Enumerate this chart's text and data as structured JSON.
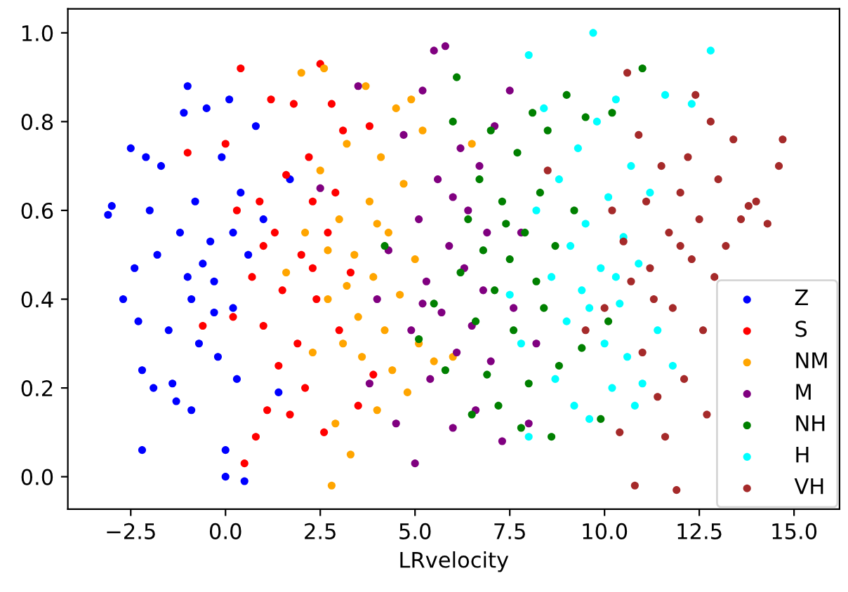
{
  "chart_data": {
    "type": "scatter",
    "xlabel": "LRvelocity",
    "xlim": [
      -4.16,
      16.2
    ],
    "ylim": [
      -0.073,
      1.054
    ],
    "xticks": [
      {
        "value": -2.5,
        "label": "−2.5"
      },
      {
        "value": 0,
        "label": "0.0"
      },
      {
        "value": 2.5,
        "label": "2.5"
      },
      {
        "value": 5,
        "label": "5.0"
      },
      {
        "value": 7.5,
        "label": "7.5"
      },
      {
        "value": 10,
        "label": "10.0"
      },
      {
        "value": 12.5,
        "label": "12.5"
      },
      {
        "value": 15,
        "label": "15.0"
      }
    ],
    "yticks": [
      {
        "value": 0,
        "label": "0.0"
      },
      {
        "value": 0.2,
        "label": "0.2"
      },
      {
        "value": 0.4,
        "label": "0.4"
      },
      {
        "value": 0.6,
        "label": "0.6"
      },
      {
        "value": 0.8,
        "label": "0.8"
      },
      {
        "value": 1,
        "label": "1.0"
      }
    ],
    "legend": "bottom right",
    "grid": false,
    "marker": "circle",
    "series": [
      {
        "name": "Z",
        "color": "#0000ff",
        "x": [
          -3.1,
          -3.0,
          -2.7,
          -2.5,
          -2.4,
          -2.3,
          -2.2,
          -2.2,
          -2.1,
          -2.0,
          -1.9,
          -1.8,
          -1.7,
          -1.5,
          -1.4,
          -1.3,
          -1.2,
          -1.1,
          -1.0,
          -0.9,
          -0.9,
          -0.8,
          -0.7,
          -0.6,
          -0.5,
          -0.4,
          -0.3,
          -0.2,
          -0.1,
          0.0,
          0.0,
          0.1,
          0.2,
          0.3,
          0.4,
          0.5,
          0.6,
          0.8,
          1.0,
          1.4,
          1.7,
          0.2,
          -0.3,
          -1.0
        ],
        "values": [
          0.59,
          0.61,
          0.4,
          0.74,
          0.47,
          0.35,
          0.06,
          0.24,
          0.72,
          0.6,
          0.2,
          0.5,
          0.7,
          0.33,
          0.21,
          0.17,
          0.55,
          0.82,
          0.88,
          0.15,
          0.4,
          0.62,
          0.3,
          0.48,
          0.83,
          0.53,
          0.44,
          0.27,
          0.72,
          0.0,
          0.06,
          0.85,
          0.38,
          0.22,
          0.64,
          -0.01,
          0.5,
          0.79,
          0.58,
          0.19,
          0.67,
          0.55,
          0.37,
          0.45
        ]
      },
      {
        "name": "S",
        "color": "#ff0000",
        "x": [
          -1.0,
          -0.6,
          0.0,
          0.2,
          0.4,
          0.5,
          0.7,
          0.8,
          0.9,
          1.0,
          1.1,
          1.2,
          1.3,
          1.5,
          1.6,
          1.7,
          1.8,
          1.9,
          2.0,
          2.1,
          2.2,
          2.3,
          2.4,
          2.5,
          2.6,
          2.7,
          2.8,
          3.0,
          3.1,
          3.3,
          3.5,
          3.8,
          3.9,
          1.4,
          2.3,
          1.0,
          2.9,
          0.3
        ],
        "values": [
          0.73,
          0.34,
          0.75,
          0.36,
          0.92,
          0.03,
          0.45,
          0.09,
          0.62,
          0.34,
          0.15,
          0.85,
          0.55,
          0.42,
          0.68,
          0.14,
          0.84,
          0.3,
          0.5,
          0.2,
          0.72,
          0.62,
          0.4,
          0.93,
          0.1,
          0.55,
          0.84,
          0.33,
          0.78,
          0.46,
          0.16,
          0.79,
          0.23,
          0.25,
          0.47,
          0.52,
          0.64,
          0.6
        ]
      },
      {
        "name": "NM",
        "color": "#ffa500",
        "x": [
          1.6,
          2.0,
          2.1,
          2.3,
          2.5,
          2.6,
          2.7,
          2.8,
          2.9,
          3.0,
          3.1,
          3.2,
          3.3,
          3.4,
          3.5,
          3.6,
          3.7,
          3.8,
          3.9,
          4.0,
          4.1,
          4.2,
          4.3,
          4.4,
          4.5,
          4.6,
          4.7,
          4.8,
          4.9,
          5.0,
          5.1,
          5.2,
          5.5,
          6.0,
          6.5,
          3.2,
          2.7,
          4.0
        ],
        "values": [
          0.46,
          0.91,
          0.55,
          0.28,
          0.69,
          0.92,
          0.4,
          -0.02,
          0.12,
          0.58,
          0.3,
          0.75,
          0.05,
          0.5,
          0.36,
          0.27,
          0.88,
          0.62,
          0.45,
          0.15,
          0.72,
          0.33,
          0.55,
          0.24,
          0.83,
          0.41,
          0.66,
          0.19,
          0.85,
          0.49,
          0.3,
          0.78,
          0.26,
          0.27,
          0.75,
          0.43,
          0.51,
          0.57
        ]
      },
      {
        "name": "M",
        "color": "#800080",
        "x": [
          2.5,
          3.5,
          3.8,
          4.0,
          4.3,
          4.5,
          4.7,
          4.9,
          5.0,
          5.1,
          5.2,
          5.3,
          5.4,
          5.5,
          5.6,
          5.7,
          5.8,
          5.9,
          6.0,
          6.1,
          6.2,
          6.3,
          6.4,
          6.5,
          6.6,
          6.7,
          6.8,
          6.9,
          7.0,
          7.1,
          7.3,
          7.5,
          7.6,
          7.8,
          8.0,
          8.2,
          5.2,
          6.0
        ],
        "values": [
          0.65,
          0.88,
          0.21,
          0.4,
          0.51,
          0.12,
          0.77,
          0.33,
          0.03,
          0.58,
          0.87,
          0.44,
          0.22,
          0.96,
          0.67,
          0.37,
          0.97,
          0.52,
          0.11,
          0.28,
          0.74,
          0.47,
          0.6,
          0.34,
          0.15,
          0.7,
          0.42,
          0.55,
          0.26,
          0.79,
          0.08,
          0.87,
          0.38,
          0.55,
          0.12,
          0.3,
          0.39,
          0.63
        ]
      },
      {
        "name": "NH",
        "color": "#008000",
        "x": [
          4.2,
          5.1,
          5.5,
          5.8,
          6.0,
          6.1,
          6.2,
          6.4,
          6.5,
          6.6,
          6.7,
          6.8,
          6.9,
          7.0,
          7.1,
          7.2,
          7.3,
          7.5,
          7.6,
          7.7,
          7.8,
          7.9,
          8.0,
          8.1,
          8.2,
          8.3,
          8.4,
          8.5,
          8.6,
          8.7,
          8.8,
          9.0,
          9.2,
          9.4,
          9.5,
          9.9,
          10.1,
          10.2,
          11.0,
          7.4
        ],
        "values": [
          0.52,
          0.31,
          0.39,
          0.24,
          0.8,
          0.9,
          0.46,
          0.58,
          0.14,
          0.35,
          0.67,
          0.51,
          0.23,
          0.78,
          0.42,
          0.16,
          0.62,
          0.49,
          0.33,
          0.73,
          0.11,
          0.55,
          0.21,
          0.82,
          0.44,
          0.64,
          0.38,
          0.78,
          0.09,
          0.52,
          0.25,
          0.86,
          0.6,
          0.29,
          0.81,
          0.13,
          0.35,
          0.82,
          0.92,
          0.57
        ]
      },
      {
        "name": "H",
        "color": "#00ffff",
        "x": [
          7.5,
          7.8,
          8.0,
          8.0,
          8.2,
          8.4,
          8.6,
          8.7,
          8.8,
          9.0,
          9.1,
          9.2,
          9.3,
          9.4,
          9.5,
          9.6,
          9.7,
          9.8,
          9.9,
          10.0,
          10.1,
          10.2,
          10.3,
          10.4,
          10.5,
          10.6,
          10.7,
          10.8,
          10.9,
          11.0,
          11.2,
          11.4,
          11.6,
          11.8,
          12.3,
          12.8,
          9.6,
          10.3
        ],
        "values": [
          0.41,
          0.3,
          0.95,
          0.09,
          0.6,
          0.83,
          0.45,
          0.22,
          0.67,
          0.35,
          0.52,
          0.16,
          0.74,
          0.42,
          0.57,
          0.13,
          1.0,
          0.8,
          0.47,
          0.3,
          0.63,
          0.2,
          0.85,
          0.39,
          0.54,
          0.27,
          0.7,
          0.16,
          0.48,
          0.21,
          0.64,
          0.33,
          0.86,
          0.25,
          0.84,
          0.96,
          0.38,
          0.45
        ]
      },
      {
        "name": "VH",
        "color": "#a52a2a",
        "x": [
          8.5,
          9.5,
          10.0,
          10.2,
          10.4,
          10.5,
          10.6,
          10.7,
          10.8,
          10.9,
          11.0,
          11.1,
          11.2,
          11.4,
          11.5,
          11.6,
          11.7,
          11.8,
          11.9,
          12.0,
          12.1,
          12.2,
          12.3,
          12.4,
          12.5,
          12.6,
          12.7,
          12.8,
          12.9,
          13.0,
          13.2,
          13.4,
          13.6,
          13.8,
          14.0,
          14.3,
          14.6,
          14.7,
          12.0,
          11.3
        ],
        "values": [
          0.69,
          0.33,
          0.38,
          0.6,
          0.1,
          0.53,
          0.91,
          0.44,
          -0.02,
          0.77,
          0.28,
          0.62,
          0.47,
          0.18,
          0.7,
          0.09,
          0.55,
          0.38,
          -0.03,
          0.64,
          0.22,
          0.72,
          0.49,
          0.86,
          0.58,
          0.33,
          0.14,
          0.8,
          0.45,
          0.67,
          0.52,
          0.76,
          0.58,
          0.61,
          0.62,
          0.57,
          0.7,
          0.76,
          0.52,
          0.4
        ]
      }
    ]
  }
}
